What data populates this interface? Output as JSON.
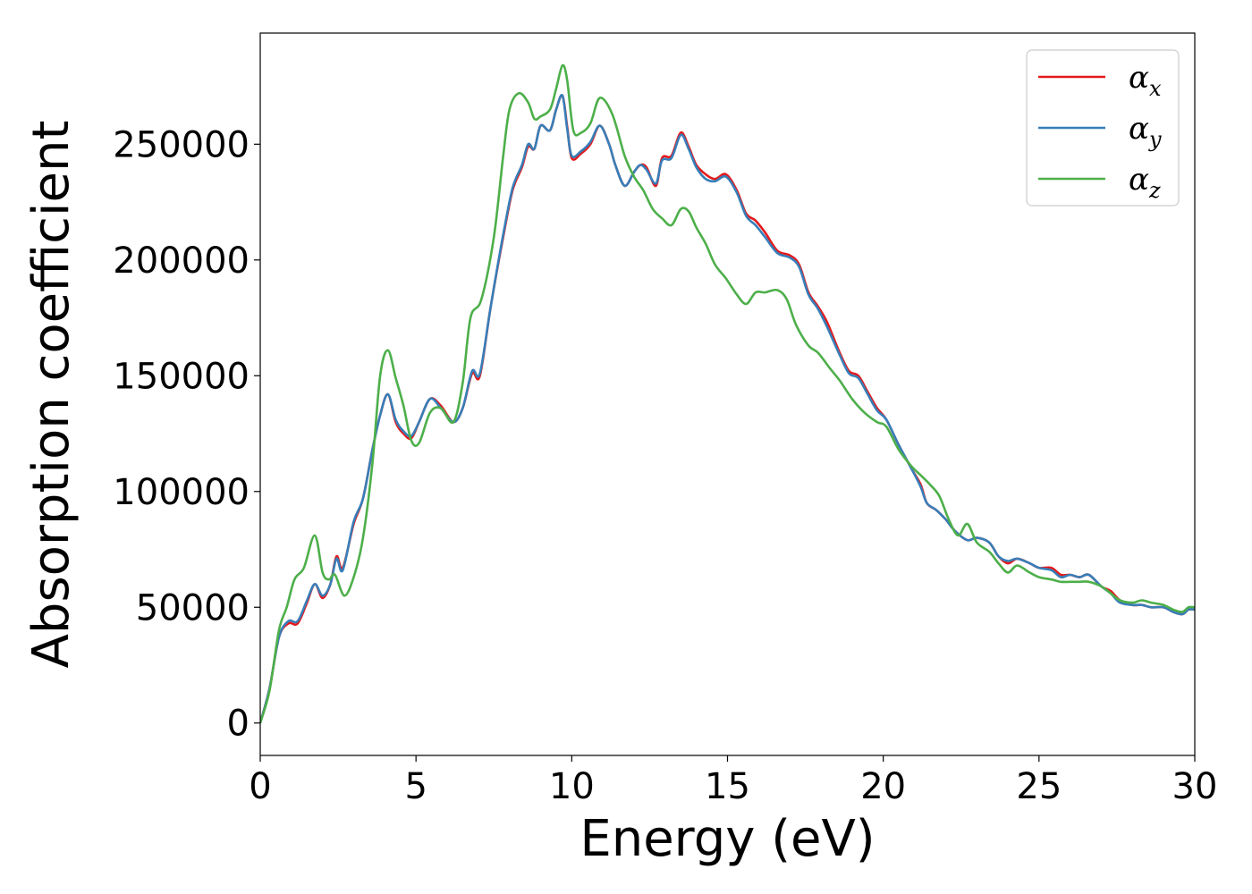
{
  "chart_data": {
    "type": "line",
    "xlabel": "Energy (eV)",
    "ylabel": "Absorption coefficient",
    "xlim": [
      0,
      30
    ],
    "ylim": [
      -14000,
      298000
    ],
    "xticks": [
      0,
      5,
      10,
      15,
      20,
      25,
      30
    ],
    "xtick_labels": [
      "0",
      "5",
      "10",
      "15",
      "20",
      "25",
      "30"
    ],
    "yticks": [
      0,
      50000,
      100000,
      150000,
      200000,
      250000
    ],
    "ytick_labels": [
      "0",
      "50000",
      "100000",
      "150000",
      "200000",
      "250000"
    ],
    "grid": false,
    "legend_position": "top-right",
    "series": [
      {
        "name": "α",
        "subscript": "x",
        "color": "#e41a1c",
        "points": [
          [
            0,
            0
          ],
          [
            0.3,
            15000
          ],
          [
            0.6,
            37000
          ],
          [
            0.9,
            43000
          ],
          [
            1.2,
            43000
          ],
          [
            1.5,
            52000
          ],
          [
            1.75,
            60000
          ],
          [
            2.0,
            54000
          ],
          [
            2.25,
            60000
          ],
          [
            2.45,
            72000
          ],
          [
            2.65,
            67000
          ],
          [
            3.0,
            86000
          ],
          [
            3.3,
            97000
          ],
          [
            3.6,
            118000
          ],
          [
            3.85,
            133000
          ],
          [
            4.1,
            142000
          ],
          [
            4.35,
            130000
          ],
          [
            4.6,
            125000
          ],
          [
            4.85,
            123000
          ],
          [
            5.1,
            130000
          ],
          [
            5.45,
            140000
          ],
          [
            5.8,
            137000
          ],
          [
            6.2,
            130000
          ],
          [
            6.5,
            136000
          ],
          [
            6.8,
            151000
          ],
          [
            7.05,
            150000
          ],
          [
            7.4,
            180000
          ],
          [
            7.8,
            210000
          ],
          [
            8.1,
            230000
          ],
          [
            8.4,
            240000
          ],
          [
            8.6,
            249000
          ],
          [
            8.8,
            248000
          ],
          [
            9.0,
            258000
          ],
          [
            9.3,
            256000
          ],
          [
            9.5,
            265000
          ],
          [
            9.7,
            271000
          ],
          [
            9.85,
            258000
          ],
          [
            10.0,
            244000
          ],
          [
            10.3,
            246000
          ],
          [
            10.6,
            250000
          ],
          [
            10.9,
            258000
          ],
          [
            11.2,
            250000
          ],
          [
            11.4,
            241000
          ],
          [
            11.7,
            232000
          ],
          [
            12.0,
            238000
          ],
          [
            12.2,
            241000
          ],
          [
            12.4,
            240000
          ],
          [
            12.7,
            232000
          ],
          [
            12.9,
            244000
          ],
          [
            13.2,
            245000
          ],
          [
            13.5,
            255000
          ],
          [
            13.75,
            249000
          ],
          [
            14.0,
            241000
          ],
          [
            14.3,
            237000
          ],
          [
            14.6,
            235000
          ],
          [
            14.95,
            237000
          ],
          [
            15.3,
            230000
          ],
          [
            15.6,
            220000
          ],
          [
            15.9,
            217000
          ],
          [
            16.2,
            212000
          ],
          [
            16.6,
            204000
          ],
          [
            17.0,
            202000
          ],
          [
            17.3,
            198000
          ],
          [
            17.6,
            186000
          ],
          [
            17.9,
            180000
          ],
          [
            18.2,
            173000
          ],
          [
            18.6,
            160000
          ],
          [
            18.9,
            152000
          ],
          [
            19.2,
            150000
          ],
          [
            19.5,
            143000
          ],
          [
            19.8,
            136000
          ],
          [
            20.1,
            131000
          ],
          [
            20.5,
            120000
          ],
          [
            20.9,
            110000
          ],
          [
            21.2,
            103000
          ],
          [
            21.4,
            95000
          ],
          [
            21.7,
            92000
          ],
          [
            22.0,
            88000
          ],
          [
            22.3,
            83000
          ],
          [
            22.7,
            79000
          ],
          [
            23.0,
            80000
          ],
          [
            23.4,
            78000
          ],
          [
            23.7,
            72000
          ],
          [
            24.0,
            69000
          ],
          [
            24.3,
            71000
          ],
          [
            24.7,
            69000
          ],
          [
            25.0,
            67000
          ],
          [
            25.4,
            67000
          ],
          [
            25.7,
            64000
          ],
          [
            26.0,
            64000
          ],
          [
            26.3,
            63000
          ],
          [
            26.6,
            64000
          ],
          [
            27.0,
            59000
          ],
          [
            27.3,
            57000
          ],
          [
            27.6,
            53000
          ],
          [
            28.0,
            51000
          ],
          [
            28.3,
            51000
          ],
          [
            28.6,
            50000
          ],
          [
            29.0,
            50000
          ],
          [
            29.3,
            48000
          ],
          [
            29.6,
            47000
          ],
          [
            29.8,
            49000
          ],
          [
            30,
            49000
          ]
        ]
      },
      {
        "name": "α",
        "subscript": "y",
        "color": "#377eb8",
        "points": [
          [
            0,
            0
          ],
          [
            0.3,
            15000
          ],
          [
            0.6,
            37000
          ],
          [
            0.9,
            44000
          ],
          [
            1.2,
            44000
          ],
          [
            1.5,
            53000
          ],
          [
            1.75,
            60000
          ],
          [
            2.0,
            55000
          ],
          [
            2.25,
            60000
          ],
          [
            2.45,
            71000
          ],
          [
            2.65,
            66000
          ],
          [
            3.0,
            87000
          ],
          [
            3.3,
            97000
          ],
          [
            3.6,
            118000
          ],
          [
            3.85,
            133000
          ],
          [
            4.1,
            142000
          ],
          [
            4.35,
            131000
          ],
          [
            4.6,
            126000
          ],
          [
            4.85,
            124000
          ],
          [
            5.1,
            130000
          ],
          [
            5.45,
            140000
          ],
          [
            5.8,
            136000
          ],
          [
            6.2,
            130000
          ],
          [
            6.5,
            136000
          ],
          [
            6.8,
            152000
          ],
          [
            7.05,
            151000
          ],
          [
            7.4,
            180000
          ],
          [
            7.8,
            211000
          ],
          [
            8.1,
            231000
          ],
          [
            8.4,
            241000
          ],
          [
            8.6,
            250000
          ],
          [
            8.8,
            248000
          ],
          [
            9.0,
            258000
          ],
          [
            9.3,
            256000
          ],
          [
            9.5,
            265000
          ],
          [
            9.7,
            271000
          ],
          [
            9.85,
            257000
          ],
          [
            10.0,
            245000
          ],
          [
            10.3,
            247000
          ],
          [
            10.6,
            251000
          ],
          [
            10.9,
            258000
          ],
          [
            11.2,
            250000
          ],
          [
            11.4,
            241000
          ],
          [
            11.7,
            232000
          ],
          [
            12.0,
            238000
          ],
          [
            12.2,
            241000
          ],
          [
            12.4,
            239000
          ],
          [
            12.7,
            233000
          ],
          [
            12.9,
            243000
          ],
          [
            13.2,
            244000
          ],
          [
            13.5,
            254000
          ],
          [
            13.75,
            248000
          ],
          [
            14.0,
            240000
          ],
          [
            14.3,
            235000
          ],
          [
            14.6,
            234000
          ],
          [
            14.95,
            236000
          ],
          [
            15.3,
            229000
          ],
          [
            15.6,
            219000
          ],
          [
            15.9,
            215000
          ],
          [
            16.2,
            210000
          ],
          [
            16.6,
            203000
          ],
          [
            17.0,
            201000
          ],
          [
            17.3,
            197000
          ],
          [
            17.6,
            185000
          ],
          [
            17.9,
            179000
          ],
          [
            18.2,
            171000
          ],
          [
            18.6,
            159000
          ],
          [
            18.9,
            151000
          ],
          [
            19.2,
            149000
          ],
          [
            19.5,
            142000
          ],
          [
            19.8,
            135000
          ],
          [
            20.1,
            131000
          ],
          [
            20.5,
            120000
          ],
          [
            20.9,
            110000
          ],
          [
            21.2,
            102000
          ],
          [
            21.4,
            95000
          ],
          [
            21.7,
            92000
          ],
          [
            22.0,
            88000
          ],
          [
            22.3,
            83000
          ],
          [
            22.7,
            79000
          ],
          [
            23.0,
            80000
          ],
          [
            23.4,
            78000
          ],
          [
            23.7,
            72000
          ],
          [
            24.0,
            70000
          ],
          [
            24.3,
            71000
          ],
          [
            24.7,
            69000
          ],
          [
            25.0,
            67000
          ],
          [
            25.4,
            66000
          ],
          [
            25.7,
            63000
          ],
          [
            26.0,
            64000
          ],
          [
            26.3,
            63000
          ],
          [
            26.6,
            64000
          ],
          [
            27.0,
            59000
          ],
          [
            27.3,
            56000
          ],
          [
            27.6,
            52000
          ],
          [
            28.0,
            51000
          ],
          [
            28.3,
            51000
          ],
          [
            28.6,
            50000
          ],
          [
            29.0,
            50000
          ],
          [
            29.3,
            48000
          ],
          [
            29.6,
            47000
          ],
          [
            29.8,
            49000
          ],
          [
            30,
            49000
          ]
        ]
      },
      {
        "name": "α",
        "subscript": "z",
        "color": "#4daf4a",
        "points": [
          [
            0,
            0
          ],
          [
            0.3,
            14000
          ],
          [
            0.6,
            40000
          ],
          [
            0.85,
            50000
          ],
          [
            1.1,
            62000
          ],
          [
            1.4,
            67000
          ],
          [
            1.75,
            81000
          ],
          [
            2.0,
            65000
          ],
          [
            2.2,
            62000
          ],
          [
            2.4,
            64000
          ],
          [
            2.7,
            55000
          ],
          [
            3.0,
            63000
          ],
          [
            3.3,
            80000
          ],
          [
            3.6,
            112000
          ],
          [
            3.85,
            150000
          ],
          [
            4.1,
            161000
          ],
          [
            4.35,
            149000
          ],
          [
            4.6,
            137000
          ],
          [
            4.85,
            122000
          ],
          [
            5.1,
            121000
          ],
          [
            5.45,
            134000
          ],
          [
            5.8,
            136000
          ],
          [
            6.2,
            130000
          ],
          [
            6.5,
            147000
          ],
          [
            6.75,
            175000
          ],
          [
            7.1,
            183000
          ],
          [
            7.5,
            210000
          ],
          [
            7.8,
            245000
          ],
          [
            8.0,
            265000
          ],
          [
            8.3,
            272000
          ],
          [
            8.6,
            268000
          ],
          [
            8.8,
            261000
          ],
          [
            9.0,
            262000
          ],
          [
            9.3,
            265000
          ],
          [
            9.5,
            274000
          ],
          [
            9.7,
            284000
          ],
          [
            9.85,
            278000
          ],
          [
            10.05,
            256000
          ],
          [
            10.3,
            255000
          ],
          [
            10.6,
            259000
          ],
          [
            10.9,
            270000
          ],
          [
            11.3,
            263000
          ],
          [
            11.7,
            245000
          ],
          [
            12.0,
            236000
          ],
          [
            12.3,
            230000
          ],
          [
            12.6,
            222000
          ],
          [
            12.9,
            218000
          ],
          [
            13.2,
            215000
          ],
          [
            13.5,
            222000
          ],
          [
            13.75,
            221000
          ],
          [
            14.0,
            214000
          ],
          [
            14.3,
            207000
          ],
          [
            14.6,
            198000
          ],
          [
            14.95,
            192000
          ],
          [
            15.3,
            185000
          ],
          [
            15.6,
            181000
          ],
          [
            15.9,
            186000
          ],
          [
            16.2,
            186000
          ],
          [
            16.6,
            187000
          ],
          [
            16.9,
            183000
          ],
          [
            17.2,
            172000
          ],
          [
            17.6,
            163000
          ],
          [
            17.9,
            160000
          ],
          [
            18.3,
            153000
          ],
          [
            18.6,
            148000
          ],
          [
            19.0,
            140000
          ],
          [
            19.4,
            134000
          ],
          [
            19.8,
            130000
          ],
          [
            20.1,
            128000
          ],
          [
            20.5,
            118000
          ],
          [
            20.9,
            111000
          ],
          [
            21.2,
            107000
          ],
          [
            21.5,
            103000
          ],
          [
            21.8,
            98000
          ],
          [
            22.1,
            88000
          ],
          [
            22.4,
            81000
          ],
          [
            22.7,
            86000
          ],
          [
            23.0,
            78000
          ],
          [
            23.4,
            74000
          ],
          [
            23.7,
            69000
          ],
          [
            24.0,
            65000
          ],
          [
            24.3,
            68000
          ],
          [
            24.7,
            65000
          ],
          [
            25.0,
            63000
          ],
          [
            25.4,
            62000
          ],
          [
            25.7,
            61000
          ],
          [
            26.0,
            61000
          ],
          [
            26.3,
            61000
          ],
          [
            26.6,
            61000
          ],
          [
            27.0,
            59000
          ],
          [
            27.3,
            56000
          ],
          [
            27.6,
            53000
          ],
          [
            28.0,
            52000
          ],
          [
            28.3,
            53000
          ],
          [
            28.6,
            52000
          ],
          [
            29.0,
            51000
          ],
          [
            29.3,
            49000
          ],
          [
            29.6,
            48000
          ],
          [
            29.8,
            50000
          ],
          [
            30,
            50000
          ]
        ]
      }
    ]
  }
}
